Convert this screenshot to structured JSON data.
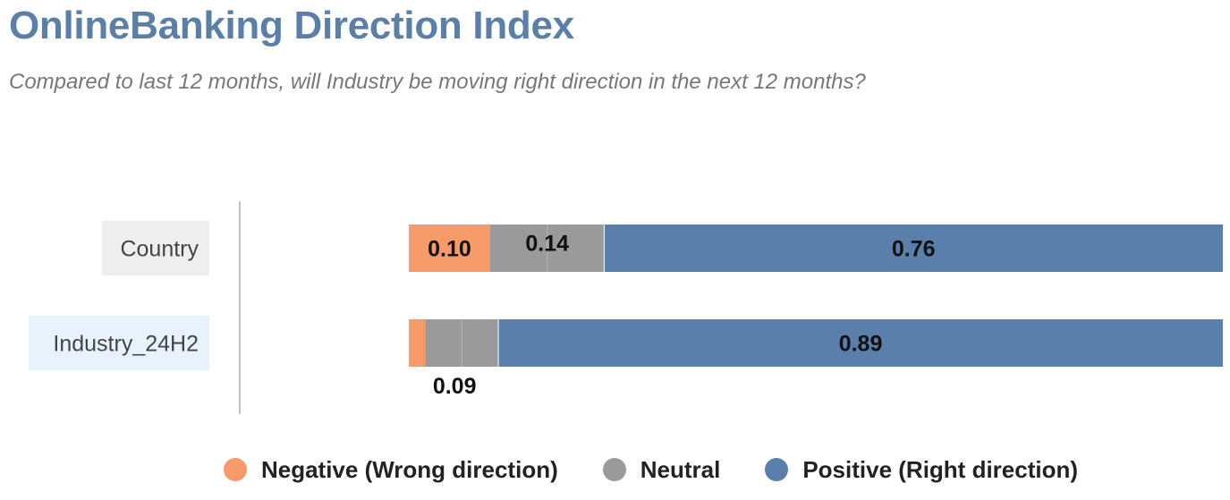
{
  "title": "OnlineBanking Direction Index",
  "subtitle": "Compared to last 12 months, will Industry be moving right direction in the next 12 months?",
  "colors": {
    "negative": "#f79a6a",
    "neutral": "#9a9a9a",
    "positive": "#5a7fab"
  },
  "chart_data": {
    "type": "bar",
    "stacked": true,
    "orientation": "horizontal",
    "categories": [
      "Country",
      "Industry_24H2"
    ],
    "series": [
      {
        "name": "Negative (Wrong direction)",
        "values": [
          0.1,
          0.02
        ]
      },
      {
        "name": "Neutral",
        "values": [
          0.14,
          0.09
        ]
      },
      {
        "name": "Positive (Right direction)",
        "values": [
          0.76,
          0.89
        ]
      }
    ],
    "data_labels": [
      [
        "0.10",
        "0.14",
        "0.76"
      ],
      [
        "",
        "0.09",
        "0.89"
      ]
    ],
    "legend_position": "bottom",
    "grid": false
  }
}
